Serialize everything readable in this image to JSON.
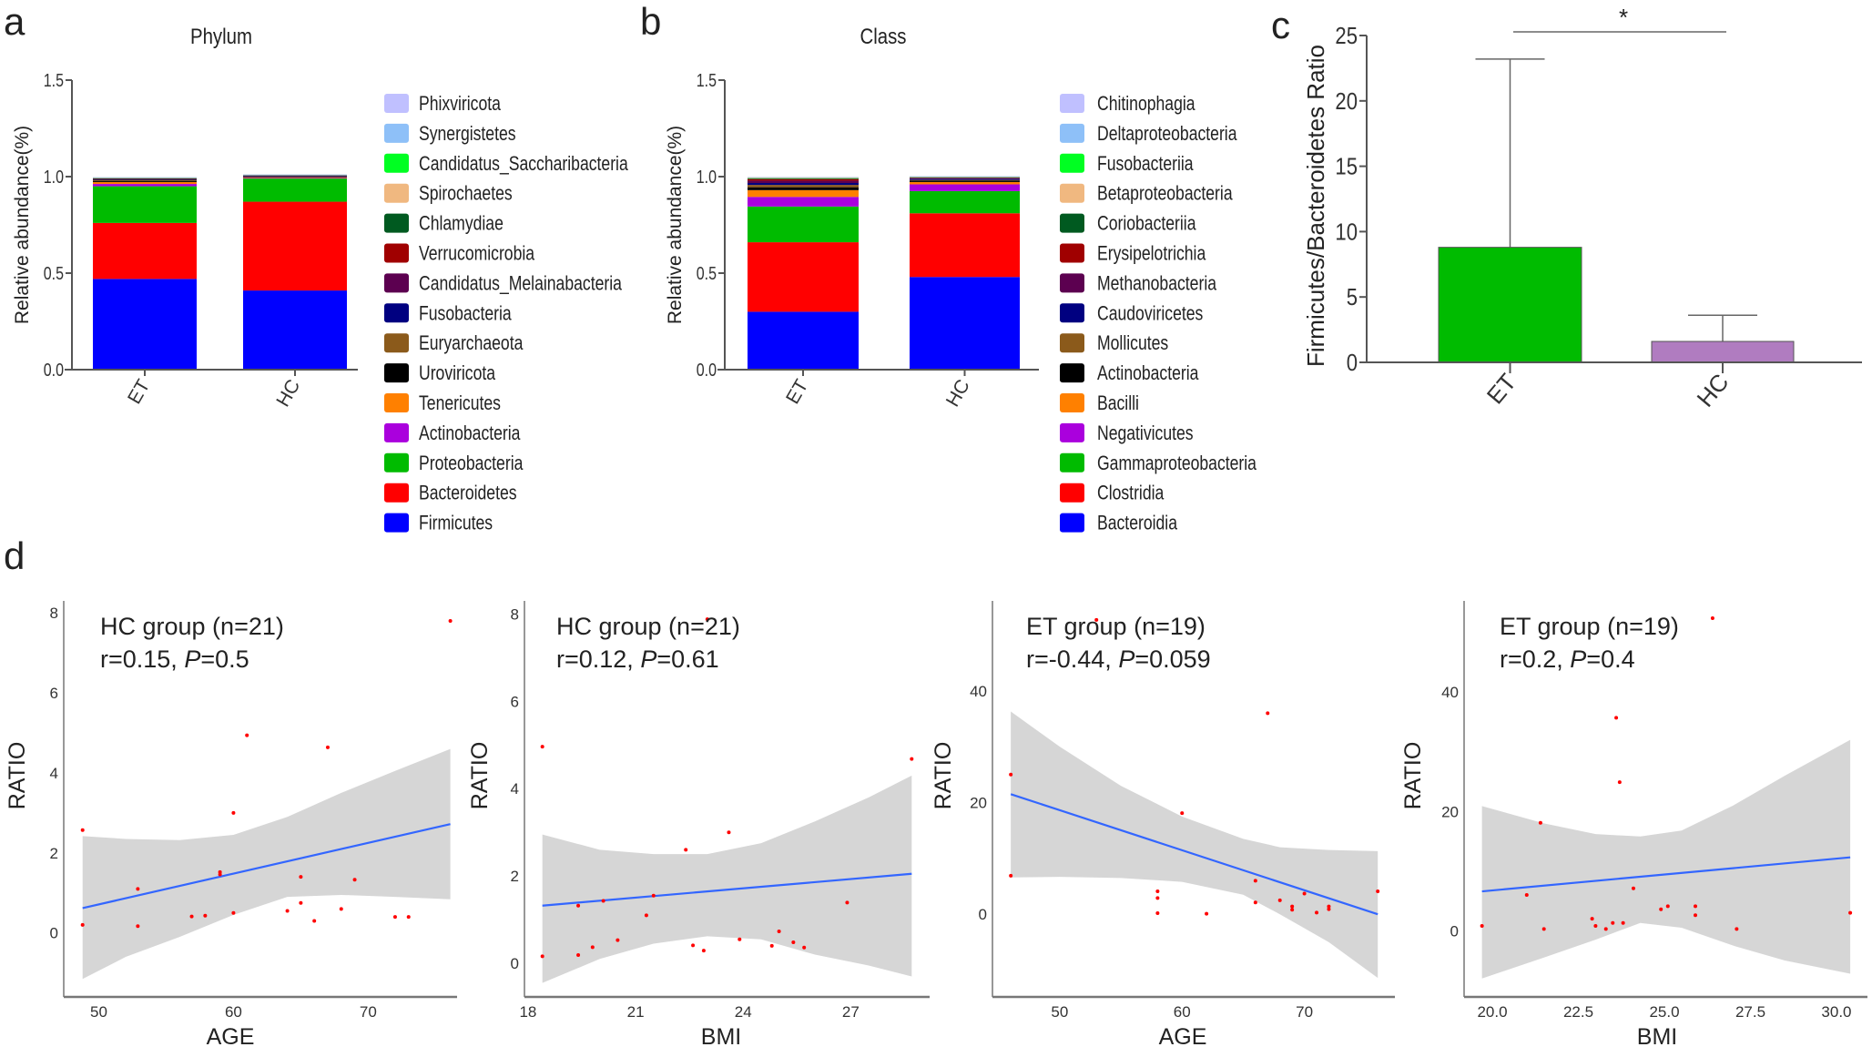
{
  "panel_labels": {
    "a": "a",
    "b": "b",
    "c": "c",
    "d": "d"
  },
  "chart_data": [
    {
      "type": "bar",
      "stacked": true,
      "panel": "a",
      "title": "Phylum",
      "ylabel": "Relative abundance(%)",
      "xlabel": "",
      "ylim": [
        0,
        1.5
      ],
      "yticks": [
        "0.0",
        "0.5",
        "1.0",
        "1.5"
      ],
      "categories": [
        "ET",
        "HC"
      ],
      "legend": "right",
      "series": [
        {
          "name": "Firmicutes",
          "color": "#0000FF",
          "values": [
            0.47,
            0.41
          ]
        },
        {
          "name": "Bacteroidetes",
          "color": "#FF0000",
          "values": [
            0.29,
            0.46
          ]
        },
        {
          "name": "Proteobacteria",
          "color": "#00BB00",
          "values": [
            0.19,
            0.12
          ]
        },
        {
          "name": "Actinobacteria",
          "color": "#AA00DD",
          "values": [
            0.012,
            0.004
          ]
        },
        {
          "name": "Tenericutes",
          "color": "#FF8000",
          "values": [
            0.01,
            0.002
          ]
        },
        {
          "name": "Uroviricota",
          "color": "#000000",
          "values": [
            0.006,
            0.004
          ]
        },
        {
          "name": "Euryarchaeota",
          "color": "#8B5A1B",
          "values": [
            0.006,
            0.001
          ]
        },
        {
          "name": "Fusobacteria",
          "color": "#000080",
          "values": [
            0.002,
            0.002
          ]
        },
        {
          "name": "Candidatus_Melainabacteria",
          "color": "#5C0050",
          "values": [
            0.003,
            0.003
          ]
        },
        {
          "name": "Verrucomicrobia",
          "color": "#A00000",
          "values": [
            0.002,
            0.001
          ]
        },
        {
          "name": "Chlamydiae",
          "color": "#005A20",
          "values": [
            0.001,
            0.001
          ]
        },
        {
          "name": "Spirochaetes",
          "color": "#F0B880",
          "values": [
            0.002,
            0.001
          ]
        },
        {
          "name": "Candidatus_Saccharibacteria",
          "color": "#00FF22",
          "values": [
            0.001,
            0.001
          ]
        },
        {
          "name": "Synergistetes",
          "color": "#8EC0F8",
          "values": [
            0.001,
            0.0005
          ]
        },
        {
          "name": "Phixviricota",
          "color": "#C0C0FF",
          "values": [
            0.001,
            0.0005
          ]
        }
      ]
    },
    {
      "type": "bar",
      "stacked": true,
      "panel": "b",
      "title": "Class",
      "ylabel": "Relative abundance(%)",
      "xlabel": "",
      "ylim": [
        0,
        1.5
      ],
      "yticks": [
        "0.0",
        "0.5",
        "1.0",
        "1.5"
      ],
      "categories": [
        "ET",
        "HC"
      ],
      "legend": "right",
      "series": [
        {
          "name": "Bacteroidia",
          "color": "#0000FF",
          "values": [
            0.3,
            0.48
          ]
        },
        {
          "name": "Clostridia",
          "color": "#FF0000",
          "values": [
            0.36,
            0.33
          ]
        },
        {
          "name": "Gammaproteobacteria",
          "color": "#00BB00",
          "values": [
            0.185,
            0.115
          ]
        },
        {
          "name": "Negativicutes",
          "color": "#AA00DD",
          "values": [
            0.05,
            0.035
          ]
        },
        {
          "name": "Bacilli",
          "color": "#FF8000",
          "values": [
            0.035,
            0.012
          ]
        },
        {
          "name": "Actinobacteria",
          "color": "#000000",
          "values": [
            0.015,
            0.008
          ]
        },
        {
          "name": "Mollicutes",
          "color": "#8B5A1B",
          "values": [
            0.012,
            0.003
          ]
        },
        {
          "name": "Caudoviricetes",
          "color": "#000080",
          "values": [
            0.01,
            0.006
          ]
        },
        {
          "name": "Methanobacteria",
          "color": "#5C0050",
          "values": [
            0.012,
            0.003
          ]
        },
        {
          "name": "Erysipelotrichia",
          "color": "#A00000",
          "values": [
            0.008,
            0.003
          ]
        },
        {
          "name": "Coriobacteriia",
          "color": "#005A20",
          "values": [
            0.004,
            0.002
          ]
        },
        {
          "name": "Betaproteobacteria",
          "color": "#F0B880",
          "values": [
            0.002,
            0.002
          ]
        },
        {
          "name": "Fusobacteriia",
          "color": "#00FF22",
          "values": [
            0.003,
            0.001
          ]
        },
        {
          "name": "Deltaproteobacteria",
          "color": "#8EC0F8",
          "values": [
            0.001,
            0.001
          ]
        },
        {
          "name": "Chitinophagia",
          "color": "#C0C0FF",
          "values": [
            0.001,
            0.001
          ]
        }
      ]
    },
    {
      "type": "bar",
      "panel": "c",
      "ylabel": "Firmicutes/Bacteroidetes Ratio",
      "xlabel": "",
      "ylim": [
        0,
        25
      ],
      "yticks": [
        "0",
        "5",
        "10",
        "15",
        "20",
        "25"
      ],
      "categories": [
        "ET",
        "HC"
      ],
      "values": [
        8.8,
        1.6
      ],
      "error_upper": [
        23.2,
        3.6
      ],
      "colors": [
        "#00BB00",
        "#B07CC0"
      ],
      "significance": "*"
    },
    {
      "type": "scatter",
      "panel": "d1",
      "annotation": {
        "group": "HC group (n=21)",
        "r": "r=0.15, ",
        "p_label": "P",
        "p_value": "=0.5"
      },
      "xlabel": "AGE",
      "ylabel": "RATIO",
      "xlim": [
        47.4,
        76.6
      ],
      "ylim": [
        -1.6,
        8.3
      ],
      "xticks": [
        50,
        60,
        70
      ],
      "yticks": [
        0,
        2,
        4,
        6,
        8
      ],
      "point_color": "#FF0000",
      "line_color": "#3366FF",
      "band_color": "#D6D6D6",
      "points": [
        [
          48.8,
          2.57
        ],
        [
          48.8,
          0.2
        ],
        [
          52.9,
          1.1
        ],
        [
          52.9,
          0.17
        ],
        [
          56.9,
          0.41
        ],
        [
          57.9,
          0.43
        ],
        [
          59,
          1.52
        ],
        [
          59,
          1.46
        ],
        [
          60,
          3.0
        ],
        [
          60,
          0.5
        ],
        [
          61,
          4.94
        ],
        [
          64,
          0.55
        ],
        [
          65,
          1.4
        ],
        [
          65,
          0.75
        ],
        [
          66,
          0.3
        ],
        [
          67,
          4.64
        ],
        [
          68,
          0.6
        ],
        [
          69,
          1.33
        ],
        [
          72,
          0.4
        ],
        [
          73,
          0.4
        ],
        [
          76.1,
          7.8
        ]
      ],
      "fit": [
        [
          48.8,
          0.62
        ],
        [
          76.1,
          2.72
        ]
      ],
      "band": [
        [
          48.8,
          -1.15,
          2.42
        ],
        [
          52,
          -0.6,
          2.35
        ],
        [
          56,
          -0.1,
          2.32
        ],
        [
          60,
          0.45,
          2.45
        ],
        [
          64,
          0.9,
          2.9
        ],
        [
          68,
          0.95,
          3.5
        ],
        [
          72,
          0.9,
          4.05
        ],
        [
          76.1,
          0.84,
          4.6
        ]
      ]
    },
    {
      "type": "scatter",
      "panel": "d2",
      "annotation": {
        "group": "HC group (n=21)",
        "r": "r=0.12, ",
        "p_label": "P",
        "p_value": "=0.61"
      },
      "xlabel": "BMI",
      "ylabel": "RATIO",
      "xlim": [
        17.9,
        29.2
      ],
      "ylim": [
        -0.77,
        8.3
      ],
      "xticks": [
        18,
        21,
        24,
        27
      ],
      "yticks": [
        0,
        2,
        4,
        6,
        8
      ],
      "point_color": "#FF0000",
      "line_color": "#3366FF",
      "band_color": "#D6D6D6",
      "points": [
        [
          18.4,
          4.96
        ],
        [
          18.4,
          0.16
        ],
        [
          19.4,
          1.32
        ],
        [
          19.4,
          0.19
        ],
        [
          19.8,
          0.37
        ],
        [
          20.1,
          1.43
        ],
        [
          20.5,
          0.53
        ],
        [
          21.3,
          1.1
        ],
        [
          21.5,
          1.55
        ],
        [
          22.4,
          2.6
        ],
        [
          22.6,
          0.41
        ],
        [
          22.9,
          0.29
        ],
        [
          23.0,
          7.88
        ],
        [
          23.6,
          3.0
        ],
        [
          23.9,
          0.55
        ],
        [
          24.8,
          0.4
        ],
        [
          25.0,
          0.73
        ],
        [
          25.4,
          0.48
        ],
        [
          25.7,
          0.36
        ],
        [
          26.9,
          1.39
        ],
        [
          28.7,
          4.68
        ]
      ],
      "fit": [
        [
          18.4,
          1.32
        ],
        [
          28.7,
          2.05
        ]
      ],
      "band": [
        [
          18.4,
          -0.45,
          2.95
        ],
        [
          20,
          0.1,
          2.6
        ],
        [
          21.5,
          0.45,
          2.5
        ],
        [
          23,
          0.62,
          2.5
        ],
        [
          24.5,
          0.55,
          2.75
        ],
        [
          26,
          0.2,
          3.25
        ],
        [
          27.5,
          -0.05,
          3.8
        ],
        [
          28.7,
          -0.3,
          4.3
        ]
      ]
    },
    {
      "type": "scatter",
      "panel": "d3",
      "annotation": {
        "group": "ET group (n=19)",
        "r": "r=-0.44, ",
        "p_label": "P",
        "p_value": "=0.059"
      },
      "xlabel": "AGE",
      "ylabel": "RATIO",
      "xlim": [
        44.5,
        77.4
      ],
      "ylim": [
        -14.8,
        56.1
      ],
      "xticks": [
        50,
        60,
        70
      ],
      "yticks": [
        0,
        20,
        40
      ],
      "point_color": "#FF0000",
      "line_color": "#3366FF",
      "band_color": "#D6D6D6",
      "points": [
        [
          46,
          25
        ],
        [
          46,
          6.9
        ],
        [
          53,
          52.7
        ],
        [
          58,
          4.1
        ],
        [
          58,
          2.9
        ],
        [
          58,
          0.2
        ],
        [
          60,
          18.1
        ],
        [
          62,
          0.1
        ],
        [
          66,
          6.0
        ],
        [
          66,
          2.1
        ],
        [
          67,
          36
        ],
        [
          68,
          2.5
        ],
        [
          69,
          1.4
        ],
        [
          69,
          0.8
        ],
        [
          70,
          3.7
        ],
        [
          71,
          0.3
        ],
        [
          72,
          1.4
        ],
        [
          72,
          0.9
        ],
        [
          76,
          4.1
        ]
      ],
      "fit": [
        [
          46,
          21.5
        ],
        [
          76,
          0
        ]
      ],
      "band": [
        [
          46,
          6.6,
          36.3
        ],
        [
          50,
          6.7,
          30
        ],
        [
          55,
          6.5,
          23
        ],
        [
          60,
          5.8,
          17.5
        ],
        [
          65,
          3.5,
          13.5
        ],
        [
          68,
          0,
          12
        ],
        [
          72,
          -5,
          11.5
        ],
        [
          76,
          -11.4,
          11.3
        ]
      ]
    },
    {
      "type": "scatter",
      "panel": "d4",
      "annotation": {
        "group": "ET group (n=19)",
        "r": "r=0.2, ",
        "p_label": "P",
        "p_value": "=0.4"
      },
      "xlabel": "BMI",
      "ylabel": "RATIO",
      "xlim": [
        19.18,
        30.9
      ],
      "ylim": [
        -11.1,
        55.3
      ],
      "xticks": [
        "20.0",
        "22.5",
        "25.0",
        "27.5",
        "30.0"
      ],
      "yticks": [
        0,
        20,
        40
      ],
      "point_color": "#FF0000",
      "line_color": "#3366FF",
      "band_color": "#D6D6D6",
      "points": [
        [
          19.7,
          0.8
        ],
        [
          21.0,
          6.0
        ],
        [
          21.4,
          18.1
        ],
        [
          21.5,
          0.3
        ],
        [
          22.9,
          2.0
        ],
        [
          23.0,
          0.8
        ],
        [
          23.3,
          0.3
        ],
        [
          23.5,
          1.3
        ],
        [
          23.6,
          35.7
        ],
        [
          23.7,
          24.9
        ],
        [
          23.8,
          1.3
        ],
        [
          24.1,
          7.1
        ],
        [
          24.9,
          3.6
        ],
        [
          25.1,
          4.1
        ],
        [
          25.9,
          4.1
        ],
        [
          25.9,
          2.6
        ],
        [
          26.4,
          52.4
        ],
        [
          27.1,
          0.3
        ],
        [
          30.4,
          3.0
        ]
      ],
      "fit": [
        [
          19.7,
          6.6
        ],
        [
          30.4,
          12.3
        ]
      ],
      "band": [
        [
          19.7,
          -8,
          20.9
        ],
        [
          21.5,
          -4.5,
          18
        ],
        [
          23,
          -1.5,
          16.2
        ],
        [
          24.3,
          1.3,
          15.8
        ],
        [
          25.5,
          0.5,
          16.8
        ],
        [
          27,
          -2.5,
          21
        ],
        [
          28.5,
          -5,
          26
        ],
        [
          30.4,
          -7.2,
          32
        ]
      ]
    }
  ]
}
